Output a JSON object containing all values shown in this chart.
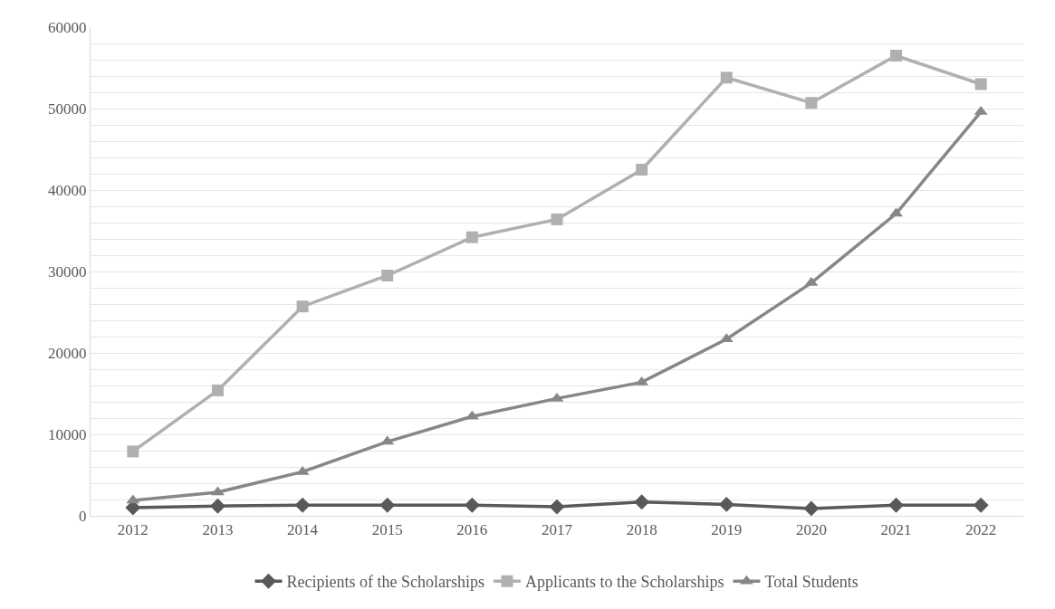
{
  "chart_data": {
    "type": "line",
    "categories": [
      "2012",
      "2013",
      "2014",
      "2015",
      "2016",
      "2017",
      "2018",
      "2019",
      "2020",
      "2021",
      "2022"
    ],
    "series": [
      {
        "name": "Recipients of the Scholarships",
        "color": "#595959",
        "marker": "diamond",
        "values": [
          1000,
          1200,
          1300,
          1300,
          1300,
          1100,
          1700,
          1400,
          900,
          1300,
          1300
        ]
      },
      {
        "name": "Applicants to the Scholarships",
        "color": "#b0b0b0",
        "marker": "square",
        "values": [
          7900,
          15400,
          25700,
          29500,
          34200,
          36400,
          42500,
          53800,
          50700,
          56500,
          53000
        ]
      },
      {
        "name": "Total Students",
        "color": "#878787",
        "marker": "triangle",
        "values": [
          1900,
          2900,
          5400,
          9100,
          12200,
          14400,
          16400,
          21700,
          28600,
          37100,
          49600
        ]
      }
    ],
    "ylim": [
      0,
      60000
    ],
    "yticks": [
      0,
      {
        "value": 2000,
        "label": null
      },
      {
        "value": 4000,
        "label": null
      },
      {
        "value": 6000,
        "label": null
      },
      {
        "value": 8000,
        "label": null
      },
      10000,
      {
        "value": 12000,
        "label": null
      },
      {
        "value": 14000,
        "label": null
      },
      {
        "value": 16000,
        "label": null
      },
      {
        "value": 18000,
        "label": null
      },
      20000,
      {
        "value": 22000,
        "label": null
      },
      {
        "value": 24000,
        "label": null
      },
      {
        "value": 26000,
        "label": null
      },
      {
        "value": 28000,
        "label": null
      },
      30000,
      {
        "value": 32000,
        "label": null
      },
      {
        "value": 34000,
        "label": null
      },
      {
        "value": 36000,
        "label": null
      },
      {
        "value": 38000,
        "label": null
      },
      40000,
      {
        "value": 42000,
        "label": null
      },
      {
        "value": 44000,
        "label": null
      },
      {
        "value": 46000,
        "label": null
      },
      {
        "value": 48000,
        "label": null
      },
      50000,
      {
        "value": 52000,
        "label": null
      },
      {
        "value": 54000,
        "label": null
      },
      {
        "value": 56000,
        "label": null
      },
      {
        "value": 58000,
        "label": null
      },
      60000
    ],
    "grid": "y",
    "legend": "bottom",
    "line_style": "solid"
  }
}
